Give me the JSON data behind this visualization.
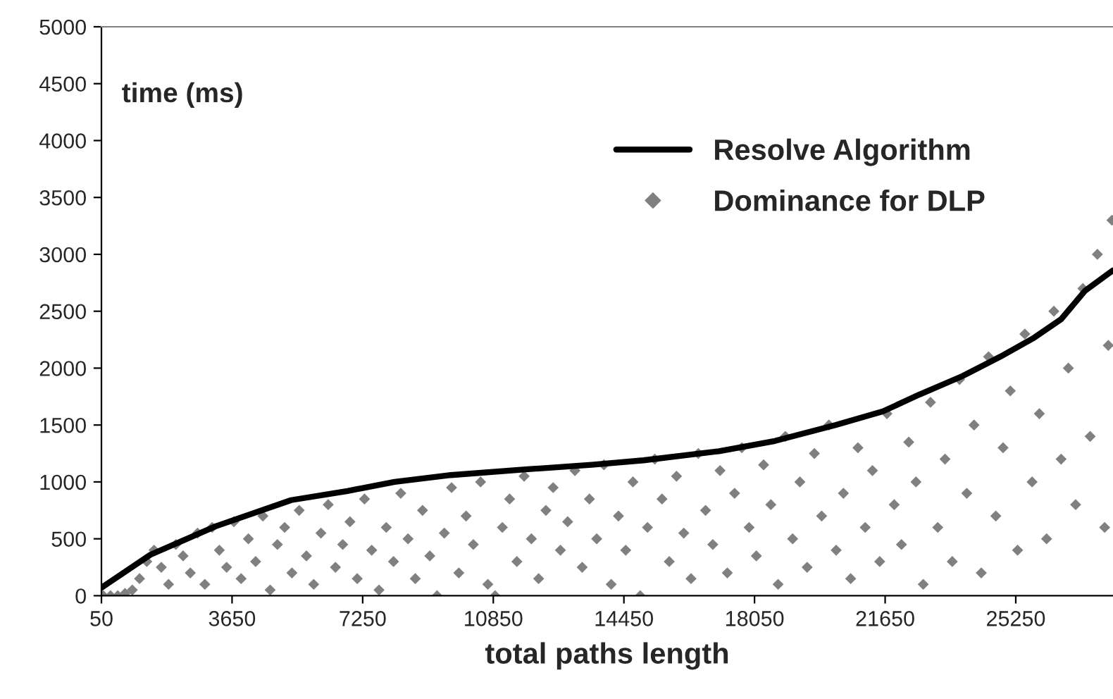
{
  "chart_data": {
    "type": "line",
    "xlabel": "total paths length",
    "ylabel": "time (ms)",
    "xlim": [
      50,
      27930
    ],
    "xticks": [
      50,
      3650,
      7250,
      10850,
      14450,
      18050,
      21650,
      25250
    ],
    "ylim": [
      0,
      5000
    ],
    "yticks": [
      0,
      500,
      1000,
      1500,
      2000,
      2500,
      3000,
      3500,
      4000,
      4500,
      5000
    ],
    "grid": false,
    "legend": "top right",
    "series": [
      {
        "name": "Resolve Algorithm",
        "color": "#000000",
        "marker": "none",
        "line_style": "solid",
        "x": [
          50,
          1400,
          3200,
          5280,
          6830,
          8130,
          9680,
          11740,
          13560,
          14990,
          17070,
          18610,
          20280,
          21590,
          22610,
          23780,
          24820,
          25720,
          26500,
          27160,
          27930
        ],
        "values": [
          70,
          360,
          610,
          840,
          920,
          1000,
          1060,
          1110,
          1150,
          1190,
          1270,
          1360,
          1500,
          1620,
          1770,
          1930,
          2100,
          2260,
          2430,
          2680,
          2860
        ]
      },
      {
        "name": "Dominance for DLP",
        "type": "scatter",
        "color": "#808080",
        "marker": "diamond",
        "x": [
          100,
          300,
          500,
          700,
          900,
          1100,
          1300,
          1500,
          1700,
          1900,
          2100,
          2300,
          2500,
          2700,
          2900,
          3100,
          3300,
          3500,
          3700,
          3900,
          4100,
          4300,
          4500,
          4700,
          4900,
          5100,
          5300,
          5500,
          5700,
          5900,
          6100,
          6300,
          6500,
          6700,
          6900,
          7100,
          7300,
          7500,
          7700,
          7900,
          8100,
          8300,
          8500,
          8700,
          8900,
          9100,
          9300,
          9500,
          9700,
          9900,
          10100,
          10300,
          10500,
          10700,
          10900,
          11100,
          11300,
          11500,
          11700,
          11900,
          12100,
          12300,
          12500,
          12700,
          12900,
          13100,
          13300,
          13500,
          13700,
          13900,
          14100,
          14300,
          14500,
          14700,
          14900,
          15100,
          15300,
          15500,
          15700,
          15900,
          16100,
          16300,
          16500,
          16700,
          16900,
          17100,
          17300,
          17500,
          17700,
          17900,
          18100,
          18300,
          18500,
          18700,
          18900,
          19100,
          19300,
          19500,
          19700,
          19900,
          20100,
          20300,
          20500,
          20700,
          20900,
          21100,
          21300,
          21500,
          21700,
          21900,
          22100,
          22300,
          22500,
          22700,
          22900,
          23100,
          23300,
          23500,
          23700,
          23900,
          24100,
          24300,
          24500,
          24700,
          24900,
          25100,
          25300,
          25500,
          25700,
          25900,
          26100,
          26300,
          26500,
          26700,
          26900,
          27100,
          27300,
          27500,
          27700,
          27800,
          27900
        ],
        "values": [
          0,
          0,
          0,
          20,
          50,
          150,
          300,
          400,
          250,
          100,
          450,
          350,
          200,
          550,
          100,
          600,
          400,
          250,
          650,
          150,
          500,
          300,
          700,
          50,
          450,
          600,
          200,
          750,
          350,
          100,
          550,
          800,
          250,
          450,
          650,
          150,
          850,
          400,
          50,
          600,
          300,
          900,
          500,
          150,
          750,
          350,
          0,
          550,
          950,
          200,
          700,
          450,
          1000,
          100,
          0,
          600,
          850,
          300,
          1050,
          500,
          150,
          750,
          950,
          400,
          650,
          1100,
          250,
          850,
          500,
          1150,
          100,
          700,
          400,
          1000,
          0,
          600,
          1200,
          850,
          300,
          1050,
          550,
          150,
          1250,
          750,
          450,
          1100,
          200,
          900,
          1300,
          600,
          350,
          1150,
          800,
          100,
          1400,
          500,
          1000,
          250,
          1250,
          700,
          1500,
          400,
          900,
          150,
          1300,
          600,
          1100,
          300,
          1600,
          800,
          450,
          1350,
          1000,
          100,
          1700,
          600,
          1200,
          300,
          1900,
          900,
          1500,
          200,
          2100,
          700,
          1300,
          1800,
          400,
          2300,
          1000,
          1600,
          500,
          2500,
          1200,
          2000,
          800,
          2700,
          1400,
          3000,
          600,
          2200,
          3300
        ]
      }
    ]
  }
}
